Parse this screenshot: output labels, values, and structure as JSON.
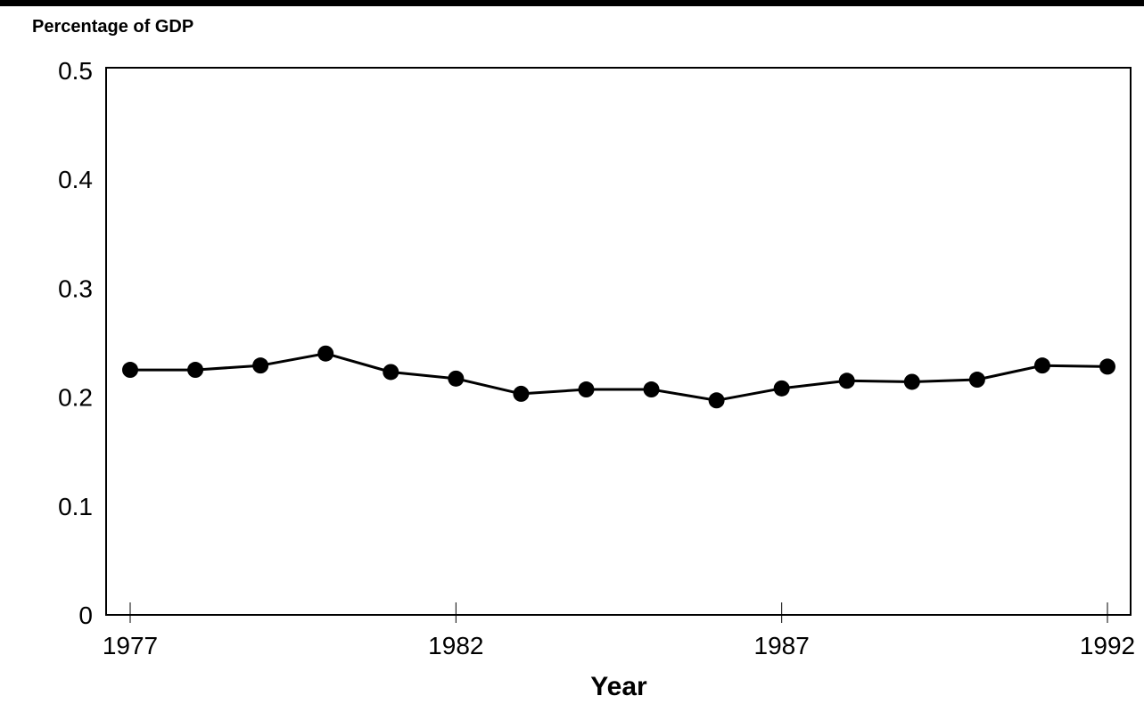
{
  "chart_data": {
    "type": "line",
    "title": "",
    "ylabel": "Percentage of GDP",
    "xlabel": "Year",
    "xlim": [
      1977,
      1992
    ],
    "ylim": [
      0,
      0.5
    ],
    "x_ticks": [
      "1977",
      "1982",
      "1987",
      "1992"
    ],
    "y_ticks": [
      "0",
      "0.1",
      "0.2",
      "0.3",
      "0.4",
      "0.5"
    ],
    "grid": false,
    "legend": "none",
    "series": [
      {
        "x": [
          1977,
          1978,
          1979,
          1980,
          1981,
          1982,
          1983,
          1984,
          1985,
          1986,
          1987,
          1988,
          1989,
          1990,
          1991,
          1992
        ],
        "values": [
          0.225,
          0.225,
          0.229,
          0.24,
          0.223,
          0.217,
          0.203,
          0.207,
          0.207,
          0.197,
          0.208,
          0.215,
          0.214,
          0.216,
          0.229,
          0.228
        ]
      }
    ],
    "colors": {
      "line": "#000000",
      "marker": "#000000",
      "axis": "#000000",
      "background": "#ffffff"
    }
  }
}
